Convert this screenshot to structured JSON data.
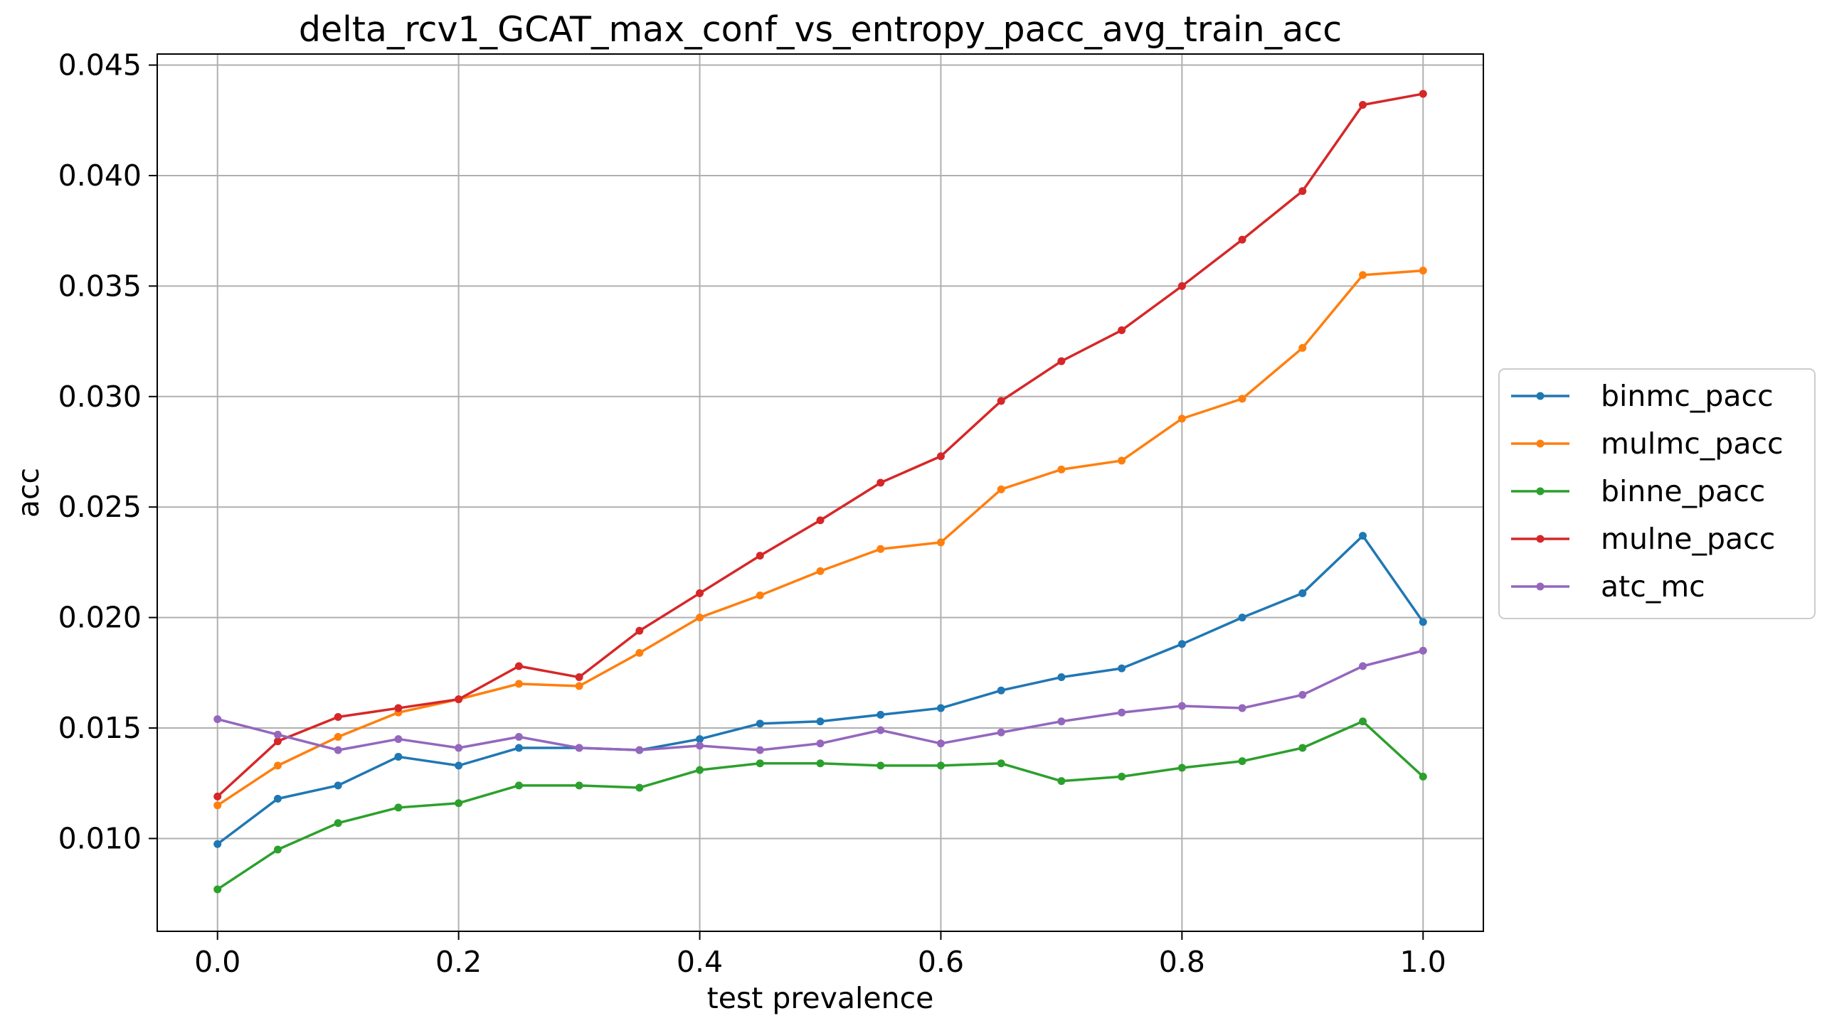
{
  "chart_data": {
    "type": "line",
    "title": "delta_rcv1_GCAT_max_conf_vs_entropy_pacc_avg_train_acc",
    "xlabel": "test prevalence",
    "ylabel": "acc",
    "xlim": [
      -0.05,
      1.05
    ],
    "ylim": [
      0.0058,
      0.0455
    ],
    "grid": true,
    "legend_position": "center-right, outside plot",
    "x_ticks": [
      0.0,
      0.2,
      0.4,
      0.6,
      0.8,
      1.0
    ],
    "x_tick_labels": [
      "0.0",
      "0.2",
      "0.4",
      "0.6",
      "0.8",
      "1.0"
    ],
    "y_ticks": [
      0.01,
      0.015,
      0.02,
      0.025,
      0.03,
      0.035,
      0.04,
      0.045
    ],
    "y_tick_labels": [
      "0.010",
      "0.015",
      "0.020",
      "0.025",
      "0.030",
      "0.035",
      "0.040",
      "0.045"
    ],
    "x": [
      0.0,
      0.05,
      0.1,
      0.15,
      0.2,
      0.25,
      0.3,
      0.35,
      0.4,
      0.45,
      0.5,
      0.55,
      0.6,
      0.65,
      0.7,
      0.75,
      0.8,
      0.85,
      0.9,
      0.95,
      1.0
    ],
    "series": [
      {
        "name": "binmc_pacc",
        "color": "#1f77b4",
        "values": [
          0.00975,
          0.0118,
          0.0124,
          0.0137,
          0.0133,
          0.0141,
          0.0141,
          0.014,
          0.0145,
          0.0152,
          0.0153,
          0.0156,
          0.0159,
          0.0167,
          0.0173,
          0.0177,
          0.0188,
          0.02,
          0.0211,
          0.0237,
          0.0198
        ]
      },
      {
        "name": "mulmc_pacc",
        "color": "#ff7f0e",
        "values": [
          0.0115,
          0.0133,
          0.0146,
          0.0157,
          0.0163,
          0.017,
          0.0169,
          0.0184,
          0.02,
          0.021,
          0.0221,
          0.0231,
          0.0234,
          0.0258,
          0.0267,
          0.0271,
          0.029,
          0.0299,
          0.0322,
          0.0355,
          0.0357
        ]
      },
      {
        "name": "binne_pacc",
        "color": "#2ca02c",
        "values": [
          0.0077,
          0.0095,
          0.0107,
          0.0114,
          0.0116,
          0.0124,
          0.0124,
          0.0123,
          0.0131,
          0.0134,
          0.0134,
          0.0133,
          0.0133,
          0.0134,
          0.0126,
          0.0128,
          0.0132,
          0.0135,
          0.0141,
          0.0153,
          0.0128
        ]
      },
      {
        "name": "mulne_pacc",
        "color": "#d62728",
        "values": [
          0.0119,
          0.0144,
          0.0155,
          0.0159,
          0.0163,
          0.0178,
          0.0173,
          0.0194,
          0.0211,
          0.0228,
          0.0244,
          0.0261,
          0.0273,
          0.0298,
          0.0316,
          0.033,
          0.035,
          0.0371,
          0.0393,
          0.0432,
          0.0437
        ]
      },
      {
        "name": "atc_mc",
        "color": "#9467bd",
        "values": [
          0.0154,
          0.0147,
          0.014,
          0.0145,
          0.0141,
          0.0146,
          0.0141,
          0.014,
          0.0142,
          0.014,
          0.0143,
          0.0149,
          0.0143,
          0.0148,
          0.0153,
          0.0157,
          0.016,
          0.0159,
          0.0165,
          0.0178,
          0.0185
        ]
      }
    ]
  }
}
